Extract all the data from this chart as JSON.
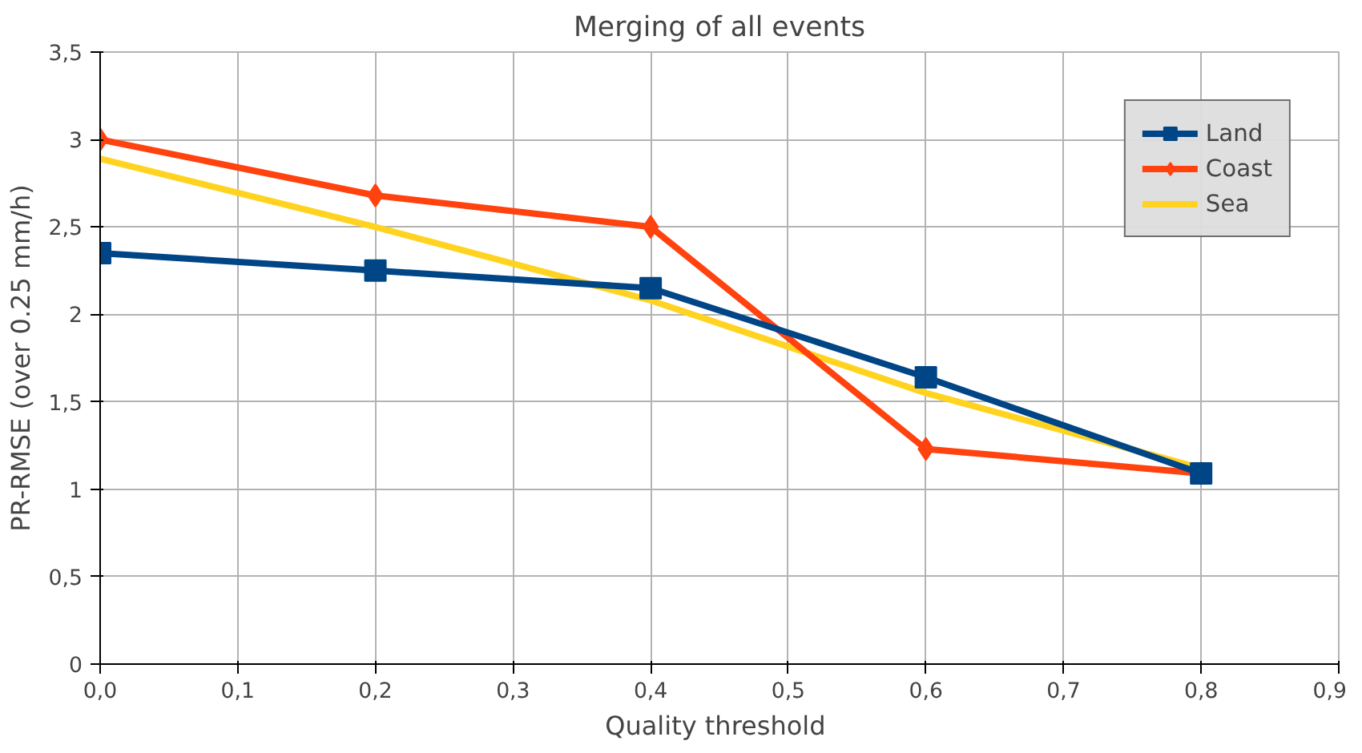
{
  "chart_data": {
    "type": "line",
    "title": "Merging of all events",
    "xlabel": "Quality  threshold",
    "ylabel": "PR-RMSE (over 0.25 mm/h)",
    "x": [
      0,
      0.2,
      0.4,
      0.6,
      0.8
    ],
    "series": [
      {
        "name": "Land",
        "color": "#004586",
        "marker": "square",
        "values": [
          2.35,
          2.25,
          2.15,
          1.64,
          1.09
        ]
      },
      {
        "name": "Coast",
        "color": "#ff420e",
        "marker": "diamond",
        "values": [
          3.0,
          2.68,
          2.5,
          1.23,
          1.09
        ]
      },
      {
        "name": "Sea",
        "color": "#ffd320",
        "marker": "none",
        "values": [
          2.89,
          2.5,
          2.08,
          1.55,
          1.12
        ]
      }
    ],
    "xlim": [
      0,
      0.9
    ],
    "xticks": [
      {
        "value": 0,
        "label": "0,0"
      },
      {
        "value": 0.1,
        "label": "0,1"
      },
      {
        "value": 0.2,
        "label": "0,2"
      },
      {
        "value": 0.3,
        "label": "0,3"
      },
      {
        "value": 0.4,
        "label": "0,4"
      },
      {
        "value": 0.5,
        "label": "0,5"
      },
      {
        "value": 0.6,
        "label": "0,6"
      },
      {
        "value": 0.7,
        "label": "0,7"
      },
      {
        "value": 0.8,
        "label": "0,8"
      },
      {
        "value": 0.9,
        "label": "0,9"
      }
    ],
    "ylim": [
      0,
      3.5
    ],
    "yticks": [
      0,
      {
        "value": 0.5,
        "label": "0,5"
      },
      1,
      {
        "value": 1.5,
        "label": "1,5"
      },
      2,
      {
        "value": 2.5,
        "label": "2,5"
      },
      3,
      {
        "value": 3.5,
        "label": "3,5"
      }
    ],
    "grid": true,
    "legend": "top right",
    "line_style": "solid"
  }
}
